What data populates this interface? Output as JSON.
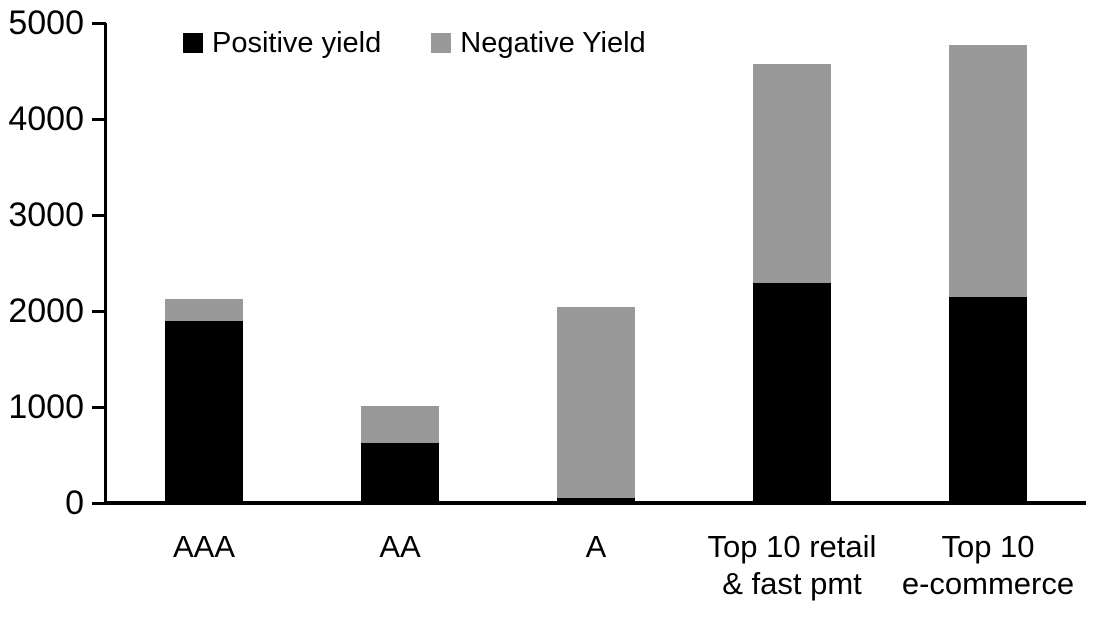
{
  "chart_data": {
    "type": "bar",
    "stacked": true,
    "title": "",
    "xlabel": "",
    "ylabel": "",
    "categories": [
      "AAA",
      "AA",
      "A",
      "Top 10 retail\n& fast pmt",
      "Top 10\ne-commerce"
    ],
    "series": [
      {
        "name": "Positive yield",
        "color": "#000000",
        "values": [
          1900,
          630,
          50,
          2290,
          2150
        ]
      },
      {
        "name": "Negative Yield",
        "color": "#999999",
        "values": [
          230,
          380,
          1990,
          2280,
          2620
        ]
      }
    ],
    "ylim": [
      0,
      5000
    ],
    "yticks": [
      "0",
      "1000",
      "2000",
      "3000",
      "4000",
      "5000"
    ],
    "grid": false,
    "legend_position": "top-left",
    "colors": {
      "positive": "#000000",
      "negative": "#999999",
      "axis": "#000000",
      "background": "#ffffff"
    }
  }
}
